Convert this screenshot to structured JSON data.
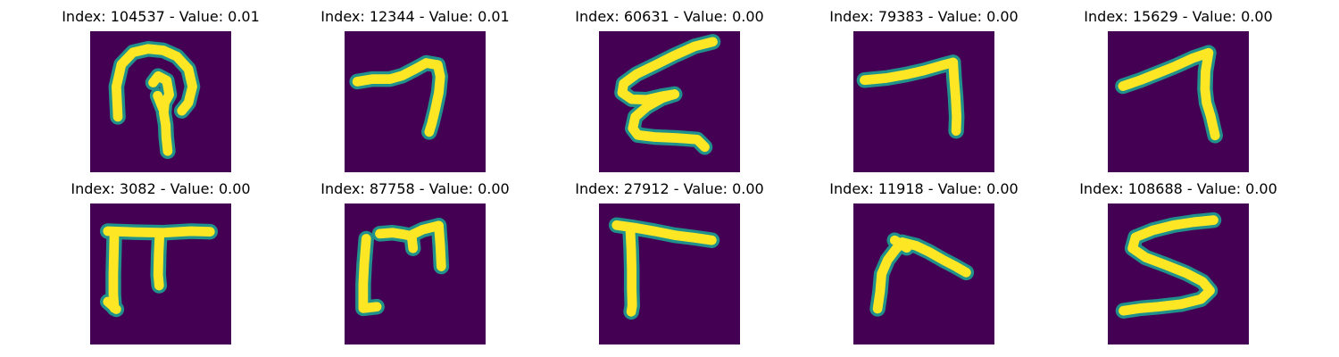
{
  "colors": {
    "background": "#440154",
    "outer": "#21918c",
    "inner": "#fde725"
  },
  "panels": [
    {
      "title": "Index: 104537 - Value: 0.01",
      "strokes": [
        [
          [
            5.5,
            17
          ],
          [
            5.2,
            11
          ],
          [
            6.2,
            6.6
          ],
          [
            8.5,
            4.2
          ],
          [
            11.5,
            3.5
          ],
          [
            14.5,
            3.8
          ],
          [
            17.2,
            5
          ],
          [
            19.5,
            7.5
          ],
          [
            20.3,
            11
          ],
          [
            19.5,
            14.2
          ],
          [
            18.2,
            15.8
          ]
        ],
        [
          [
            12.5,
            10.2
          ],
          [
            13.5,
            8.9
          ],
          [
            15.2,
            9.8
          ],
          [
            15.7,
            12.6
          ],
          [
            14.8,
            14.2
          ],
          [
            14.6,
            16.2
          ],
          [
            15,
            18.6
          ],
          [
            15.1,
            21
          ],
          [
            15.4,
            23.8
          ]
        ],
        [
          [
            13.4,
            12.8
          ],
          [
            14.4,
            15.3
          ]
        ]
      ]
    },
    {
      "title": "Index: 12344 - Value: 0.01",
      "strokes": [
        [
          [
            2.5,
            10
          ],
          [
            5.5,
            9.5
          ],
          [
            9,
            9.5
          ],
          [
            11.5,
            8.8
          ],
          [
            14,
            7.5
          ],
          [
            16.2,
            6.3
          ],
          [
            18.5,
            6.7
          ]
        ],
        [
          [
            18.5,
            6.7
          ],
          [
            19,
            9
          ],
          [
            18.7,
            12.2
          ],
          [
            18,
            15.5
          ],
          [
            17.3,
            18.4
          ],
          [
            16.8,
            20
          ]
        ]
      ]
    },
    {
      "title": "Index: 60631 - Value: 0.00",
      "strokes": [
        [
          [
            22.6,
            2.1
          ],
          [
            19,
            3
          ],
          [
            15,
            4.8
          ],
          [
            11,
            6.8
          ],
          [
            7.5,
            8.5
          ],
          [
            4.9,
            10.4
          ],
          [
            4.6,
            12.2
          ],
          [
            6.5,
            13.5
          ],
          [
            9.5,
            13.6
          ],
          [
            12.5,
            12.9
          ],
          [
            15,
            12.5
          ]
        ],
        [
          [
            15,
            12.5
          ],
          [
            12.5,
            13.3
          ],
          [
            9.5,
            15
          ],
          [
            7.2,
            17
          ],
          [
            6.7,
            19.3
          ],
          [
            7.7,
            20.6
          ],
          [
            11,
            21
          ],
          [
            15.5,
            21.2
          ],
          [
            19.5,
            21.5
          ],
          [
            21,
            23
          ]
        ]
      ]
    },
    {
      "title": "Index: 79383 - Value: 0.00",
      "strokes": [
        [
          [
            2.2,
            9.7
          ],
          [
            6.5,
            9.3
          ],
          [
            10.5,
            8.6
          ],
          [
            14,
            7.8
          ],
          [
            17.5,
            6.8
          ],
          [
            19.8,
            6.2
          ]
        ],
        [
          [
            19.8,
            6.2
          ],
          [
            20,
            9.5
          ],
          [
            20.3,
            13.2
          ],
          [
            20.5,
            17
          ],
          [
            20.4,
            19.8
          ]
        ]
      ]
    },
    {
      "title": "Index: 15629 - Value: 0.00",
      "strokes": [
        [
          [
            3,
            10.9
          ],
          [
            6.5,
            9.7
          ],
          [
            10,
            8.3
          ],
          [
            13.5,
            6.9
          ],
          [
            17,
            5.3
          ],
          [
            20,
            4.3
          ]
        ],
        [
          [
            20,
            4.3
          ],
          [
            19.4,
            8
          ],
          [
            19.3,
            11.5
          ],
          [
            19.6,
            14.2
          ],
          [
            20.4,
            16.8
          ],
          [
            21.3,
            20.7
          ]
        ]
      ]
    },
    {
      "title": "Index: 3082 - Value: 0.00",
      "strokes": [
        [
          [
            3.5,
            5.5
          ],
          [
            9,
            5.7
          ],
          [
            14.5,
            5.8
          ],
          [
            20,
            5.5
          ],
          [
            23.8,
            5.6
          ]
        ],
        [
          [
            4.8,
            5.8
          ],
          [
            4.7,
            10
          ],
          [
            4.6,
            14
          ],
          [
            4.6,
            18
          ],
          [
            4.8,
            20.8
          ]
        ],
        [
          [
            3.5,
            19.5
          ],
          [
            5.2,
            21
          ]
        ],
        [
          [
            13.8,
            5.8
          ],
          [
            13.6,
            10
          ],
          [
            13.5,
            14.2
          ],
          [
            13.7,
            16.3
          ]
        ]
      ]
    },
    {
      "title": "Index: 87758 - Value: 0.00",
      "strokes": [
        [
          [
            4.3,
            7
          ],
          [
            3.9,
            12
          ],
          [
            3.7,
            16
          ],
          [
            3.7,
            20.8
          ],
          [
            6.4,
            20.5
          ]
        ],
        [
          [
            7,
            6
          ],
          [
            9.5,
            5.8
          ],
          [
            11.5,
            6.1
          ],
          [
            13,
            6.4
          ],
          [
            15.5,
            5.2
          ],
          [
            18.7,
            4.4
          ]
        ],
        [
          [
            13.3,
            6.3
          ],
          [
            13.6,
            8.9
          ]
        ],
        [
          [
            18.7,
            4.4
          ],
          [
            19,
            8.5
          ],
          [
            19.2,
            12.5
          ]
        ]
      ]
    },
    {
      "title": "Index: 27912 - Value: 0.00",
      "strokes": [
        [
          [
            3.5,
            4.3
          ],
          [
            7,
            4.8
          ],
          [
            11,
            5.5
          ],
          [
            15,
            6.3
          ],
          [
            19,
            6.8
          ],
          [
            22.4,
            7.3
          ]
        ],
        [
          [
            6.2,
            5.2
          ],
          [
            6.4,
            9.2
          ],
          [
            6.5,
            13
          ],
          [
            6.5,
            17
          ],
          [
            6.6,
            20.3
          ],
          [
            6.4,
            21.5
          ]
        ]
      ]
    },
    {
      "title": "Index: 11918 - Value: 0.00",
      "strokes": [
        [
          [
            4.8,
            20.9
          ],
          [
            5.3,
            17.5
          ],
          [
            5.6,
            14
          ],
          [
            6.8,
            11.2
          ],
          [
            8.4,
            9.1
          ],
          [
            9.7,
            7.7
          ]
        ],
        [
          [
            9.7,
            7.7
          ],
          [
            12.5,
            8.4
          ],
          [
            15,
            9.6
          ],
          [
            18,
            11.3
          ],
          [
            20.3,
            12.5
          ],
          [
            22.4,
            13.7
          ]
        ],
        [
          [
            8.2,
            7.3
          ],
          [
            10.6,
            8.8
          ]
        ]
      ]
    },
    {
      "title": "Index: 108688 - Value: 0.00",
      "strokes": [
        [
          [
            21,
            3.3
          ],
          [
            17,
            3.7
          ],
          [
            13,
            4.3
          ],
          [
            9,
            5.3
          ],
          [
            5.5,
            6.7
          ],
          [
            4.9,
            8.9
          ],
          [
            7.5,
            10.7
          ],
          [
            11.5,
            12.2
          ],
          [
            15.5,
            13.8
          ],
          [
            18.8,
            15.5
          ],
          [
            20.3,
            17.3
          ],
          [
            18.5,
            19
          ],
          [
            14.5,
            20
          ],
          [
            10,
            20.5
          ],
          [
            6.5,
            20.8
          ],
          [
            3.1,
            21.3
          ]
        ]
      ]
    }
  ]
}
